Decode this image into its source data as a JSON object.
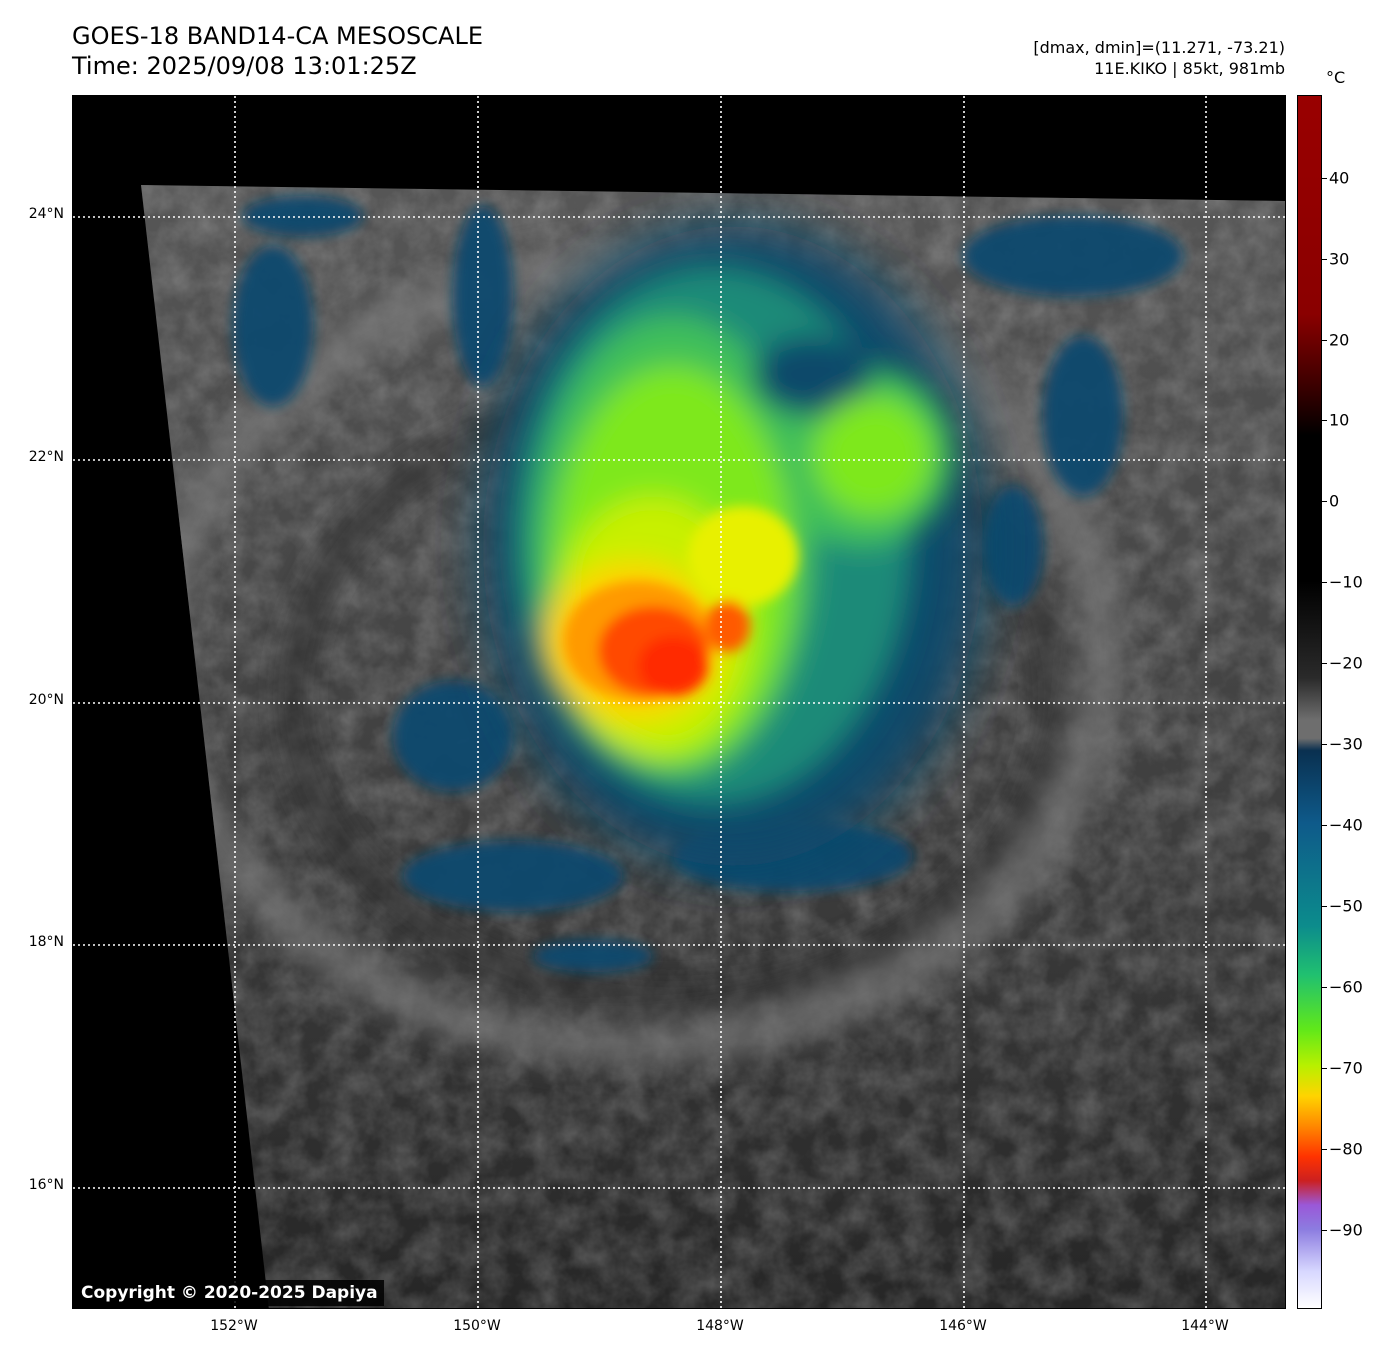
{
  "title": {
    "line1": "GOES-18 BAND14-CA MESOSCALE",
    "line2": "Time: 2025/09/08 13:01:25Z"
  },
  "info": {
    "line1": "[dmax, dmin]=(11.271, -73.21)",
    "line2": "11E.KIKO | 85kt, 981mb"
  },
  "map": {
    "lat_labels": [
      "24°N",
      "22°N",
      "20°N",
      "18°N",
      "16°N"
    ],
    "lon_labels": [
      "152°W",
      "150°W",
      "148°W",
      "146°W",
      "144°W"
    ],
    "gridlines": "dotted white",
    "copyright": "Copyright © 2020-2025 Dapiya"
  },
  "colorbar": {
    "unit": "°C",
    "ticks": [
      "40",
      "30",
      "20",
      "10",
      "0",
      "−10",
      "−20",
      "−30",
      "−40",
      "−50",
      "−60",
      "−70",
      "−80",
      "−90"
    ],
    "colors": {
      "warm_max": "#990000",
      "black": "#000000",
      "gray": "#6e6e6e",
      "dark_blue": "#0a3050",
      "teal": "#0c8c8c",
      "green": "#60e81a",
      "yellow": "#ffd400",
      "orange": "#ff8800",
      "red": "#ff3300",
      "purple": "#9a58d8",
      "white": "#ffffff"
    }
  }
}
